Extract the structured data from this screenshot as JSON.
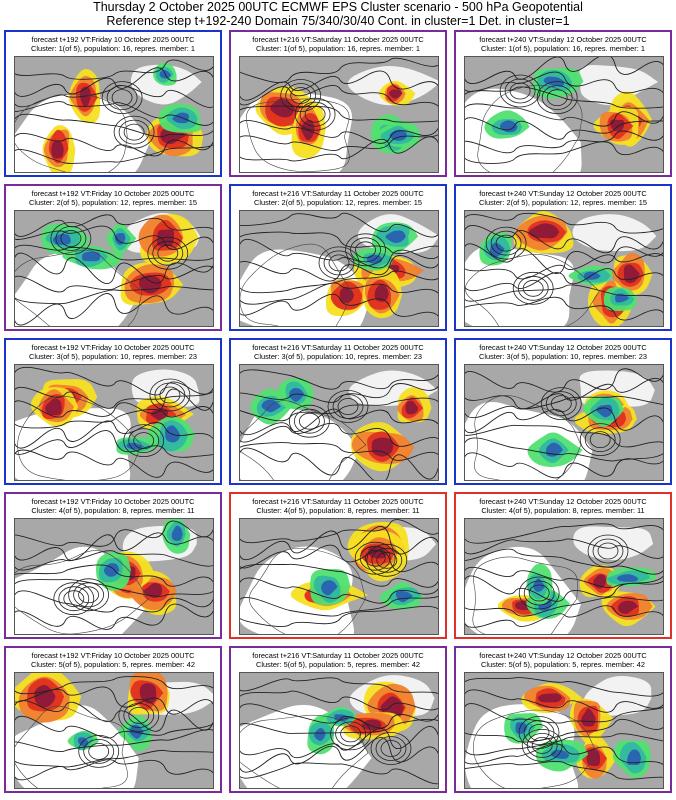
{
  "header": {
    "line1": "Thursday 2 October 2025 00UTC ECMWF EPS Cluster scenario - 500 hPa Geopotential",
    "line2": "Reference step t+192-240 Domain 75/340/30/40 Cont. in cluster=1 Det. in cluster=1"
  },
  "colors": {
    "border_blue": "#1a33cc",
    "border_purple": "#7a2a9a",
    "border_red": "#e0302a",
    "land": "#a8a8a8",
    "sea": "#ffffff",
    "anomaly_pos_strong": "#8b1a3a",
    "anomaly_pos_mid": "#e03020",
    "anomaly_pos_weak": "#f08030",
    "anomaly_pos_faint": "#f7e020",
    "anomaly_neg_strong": "#2b5fb0",
    "anomaly_neg_mid": "#30b8a0",
    "anomaly_neg_weak": "#50e070",
    "contour": "#222222"
  },
  "panels": [
    {
      "caption1": "forecast t+192 VT:Friday 10 October 2025 00UTC",
      "caption2": "Cluster: 1(of 5), population: 16, repres. member: 1",
      "border": "blue"
    },
    {
      "caption1": "forecast t+216 VT:Saturday 11 October 2025 00UTC",
      "caption2": "Cluster: 1(of 5), population: 16, repres. member: 1",
      "border": "purple"
    },
    {
      "caption1": "forecast t+240 VT:Sunday 12 October 2025 00UTC",
      "caption2": "Cluster: 1(of 5), population: 16, repres. member: 1",
      "border": "purple"
    },
    {
      "caption1": "forecast t+192 VT:Friday 10 October 2025 00UTC",
      "caption2": "Cluster: 2(of 5), population: 12, repres. member: 15",
      "border": "purple"
    },
    {
      "caption1": "forecast t+216 VT:Saturday 11 October 2025 00UTC",
      "caption2": "Cluster: 2(of 5), population: 12, repres. member: 15",
      "border": "blue"
    },
    {
      "caption1": "forecast t+240 VT:Sunday 12 October 2025 00UTC",
      "caption2": "Cluster: 2(of 5), population: 12, repres. member: 15",
      "border": "blue"
    },
    {
      "caption1": "forecast t+192 VT:Friday 10 October 2025 00UTC",
      "caption2": "Cluster: 3(of 5), population: 10, repres. member: 23",
      "border": "blue"
    },
    {
      "caption1": "forecast t+216 VT:Saturday 11 October 2025 00UTC",
      "caption2": "Cluster: 3(of 5), population: 10, repres. member: 23",
      "border": "blue"
    },
    {
      "caption1": "forecast t+240 VT:Sunday 12 October 2025 00UTC",
      "caption2": "Cluster: 3(of 5), population: 10, repres. member: 23",
      "border": "blue"
    },
    {
      "caption1": "forecast t+192 VT:Friday 10 October 2025 00UTC",
      "caption2": "Cluster: 4(of 5), population: 8, repres. member: 11",
      "border": "purple"
    },
    {
      "caption1": "forecast t+216 VT:Saturday 11 October 2025 00UTC",
      "caption2": "Cluster: 4(of 5), population: 8, repres. member: 11",
      "border": "red"
    },
    {
      "caption1": "forecast t+240 VT:Sunday 12 October 2025 00UTC",
      "caption2": "Cluster: 4(of 5), population: 8, repres. member: 11",
      "border": "red"
    },
    {
      "caption1": "forecast t+192 VT:Friday 10 October 2025 00UTC",
      "caption2": "Cluster: 5(of 5), population: 5, repres. member: 42",
      "border": "purple"
    },
    {
      "caption1": "forecast t+216 VT:Saturday 11 October 2025 00UTC",
      "caption2": "Cluster: 5(of 5), population: 5, repres. member: 42",
      "border": "purple"
    },
    {
      "caption1": "forecast t+240 VT:Sunday 12 October 2025 00UTC",
      "caption2": "Cluster: 5(of 5), population: 5, repres. member: 42",
      "border": "purple"
    }
  ]
}
